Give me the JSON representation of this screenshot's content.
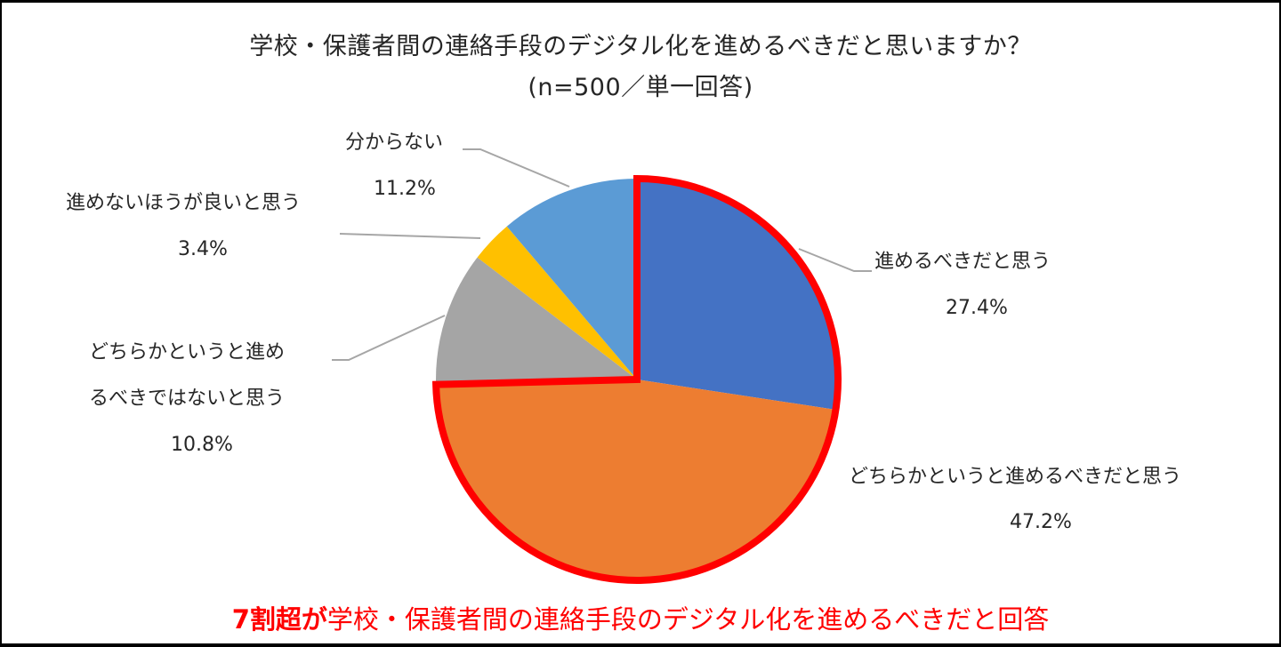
{
  "header": {
    "title": "学校・保護者間の連絡手段のデジタル化を進めるべきだと思いますか？",
    "subtitle": "(n=500／単一回答)"
  },
  "caption": {
    "bold": "7割超が",
    "rest": "学校・保護者間の連絡手段のデジタル化を進めるべきだと回答",
    "color": "#ff0000"
  },
  "labels": {
    "s0_name": "進めるべきだと思う",
    "s0_pct": "27.4%",
    "s1_name": "どちらかというと進めるべきだと思う",
    "s1_pct": "47.2%",
    "s2_name_line1": "どちらかというと進め",
    "s2_name_line2": "るべきではないと思う",
    "s2_pct": "10.8%",
    "s3_name": "進めないほうが良いと思う",
    "s3_pct": "3.4%",
    "s4_name": "分からない",
    "s4_pct": "11.2%"
  },
  "chart_data": {
    "type": "pie",
    "title": "学校・保護者間の連絡手段のデジタル化を進めるべきだと思いますか？ (n=500／単一回答)",
    "categories": [
      "進めるべきだと思う",
      "どちらかというと進めるべきだと思う",
      "どちらかというと進めるべきではないと思う",
      "進めないほうが良いと思う",
      "分からない"
    ],
    "values": [
      27.4,
      47.2,
      10.8,
      3.4,
      11.2
    ],
    "unit": "%",
    "colors": [
      "#4472c4",
      "#ed7d31",
      "#a5a5a5",
      "#ffc000",
      "#5b9bd5"
    ],
    "start_angle": "12 o'clock, clockwise",
    "highlight": {
      "slices": [
        0,
        1
      ],
      "outline_color": "#ff0000",
      "note": "Combined 74.6% outlined in red"
    },
    "legend": "none (data labels with leader lines)"
  }
}
